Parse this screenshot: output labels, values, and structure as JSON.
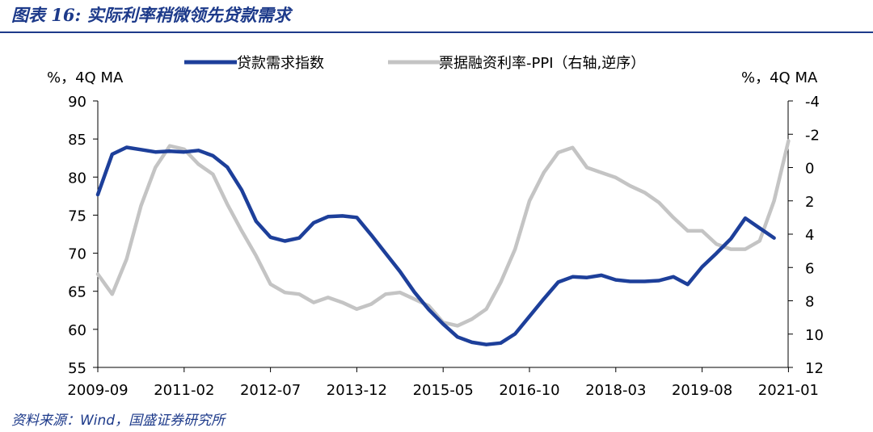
{
  "header": {
    "title": "图表 16:  实际利率稍微领先贷款需求"
  },
  "footer": {
    "source": "资料来源：Wind，国盛证券研究所"
  },
  "colors": {
    "series1": "#1d3f9a",
    "series2": "#c4c4c4",
    "accent": "#1d3a8a"
  },
  "chart_data": {
    "type": "line",
    "title": "",
    "y_left": {
      "unit_label": "%，4Q MA",
      "min": 55,
      "max": 90,
      "ticks": [
        90,
        85,
        80,
        75,
        70,
        65,
        60,
        55
      ]
    },
    "y_right": {
      "unit_label": "%，4Q MA",
      "min": -4,
      "max": 12,
      "inverted": true,
      "ticks": [
        -4,
        -2,
        0,
        2,
        4,
        6,
        8,
        10,
        12
      ]
    },
    "x_tick_labels": [
      "2009-09",
      "2011-02",
      "2012-07",
      "2013-12",
      "2015-05",
      "2016-10",
      "2018-03",
      "2019-08",
      "2021-01"
    ],
    "x_tick_quarter_index": [
      0,
      6,
      12,
      18,
      24,
      30,
      36,
      42,
      48
    ],
    "legend": {
      "position": "top"
    },
    "series": [
      {
        "name": "贷款需求指数",
        "axis": "left",
        "color": "#1d3f9a",
        "values": [
          77.7,
          83.0,
          83.9,
          83.6,
          83.3,
          83.4,
          83.3,
          83.5,
          82.8,
          81.3,
          78.3,
          74.2,
          72.1,
          71.6,
          72.0,
          74.0,
          74.8,
          74.9,
          74.7,
          72.4,
          70.0,
          67.6,
          64.9,
          62.6,
          60.7,
          59.0,
          58.3,
          58.0,
          58.2,
          59.4,
          61.7,
          64.0,
          66.2,
          66.9,
          66.8,
          67.1,
          66.5,
          66.3,
          66.3,
          66.4,
          66.9,
          65.9,
          68.2,
          70.0,
          71.9,
          74.6,
          73.3,
          72.0
        ]
      },
      {
        "name": "票据融资利率-PPI（右轴,逆序）",
        "axis": "right",
        "color": "#c4c4c4",
        "values": [
          6.4,
          7.6,
          5.5,
          2.3,
          0.0,
          -1.3,
          -1.1,
          -0.2,
          0.4,
          2.2,
          3.8,
          5.3,
          7.0,
          7.5,
          7.6,
          8.1,
          7.8,
          8.1,
          8.5,
          8.2,
          7.6,
          7.5,
          7.9,
          8.3,
          9.3,
          9.5,
          9.1,
          8.5,
          6.9,
          4.9,
          2.0,
          0.3,
          -0.9,
          -1.2,
          0.0,
          0.3,
          0.6,
          1.1,
          1.5,
          2.1,
          3.0,
          3.8,
          3.8,
          4.6,
          4.9,
          4.9,
          4.4,
          2.0,
          -1.6
        ]
      }
    ]
  }
}
